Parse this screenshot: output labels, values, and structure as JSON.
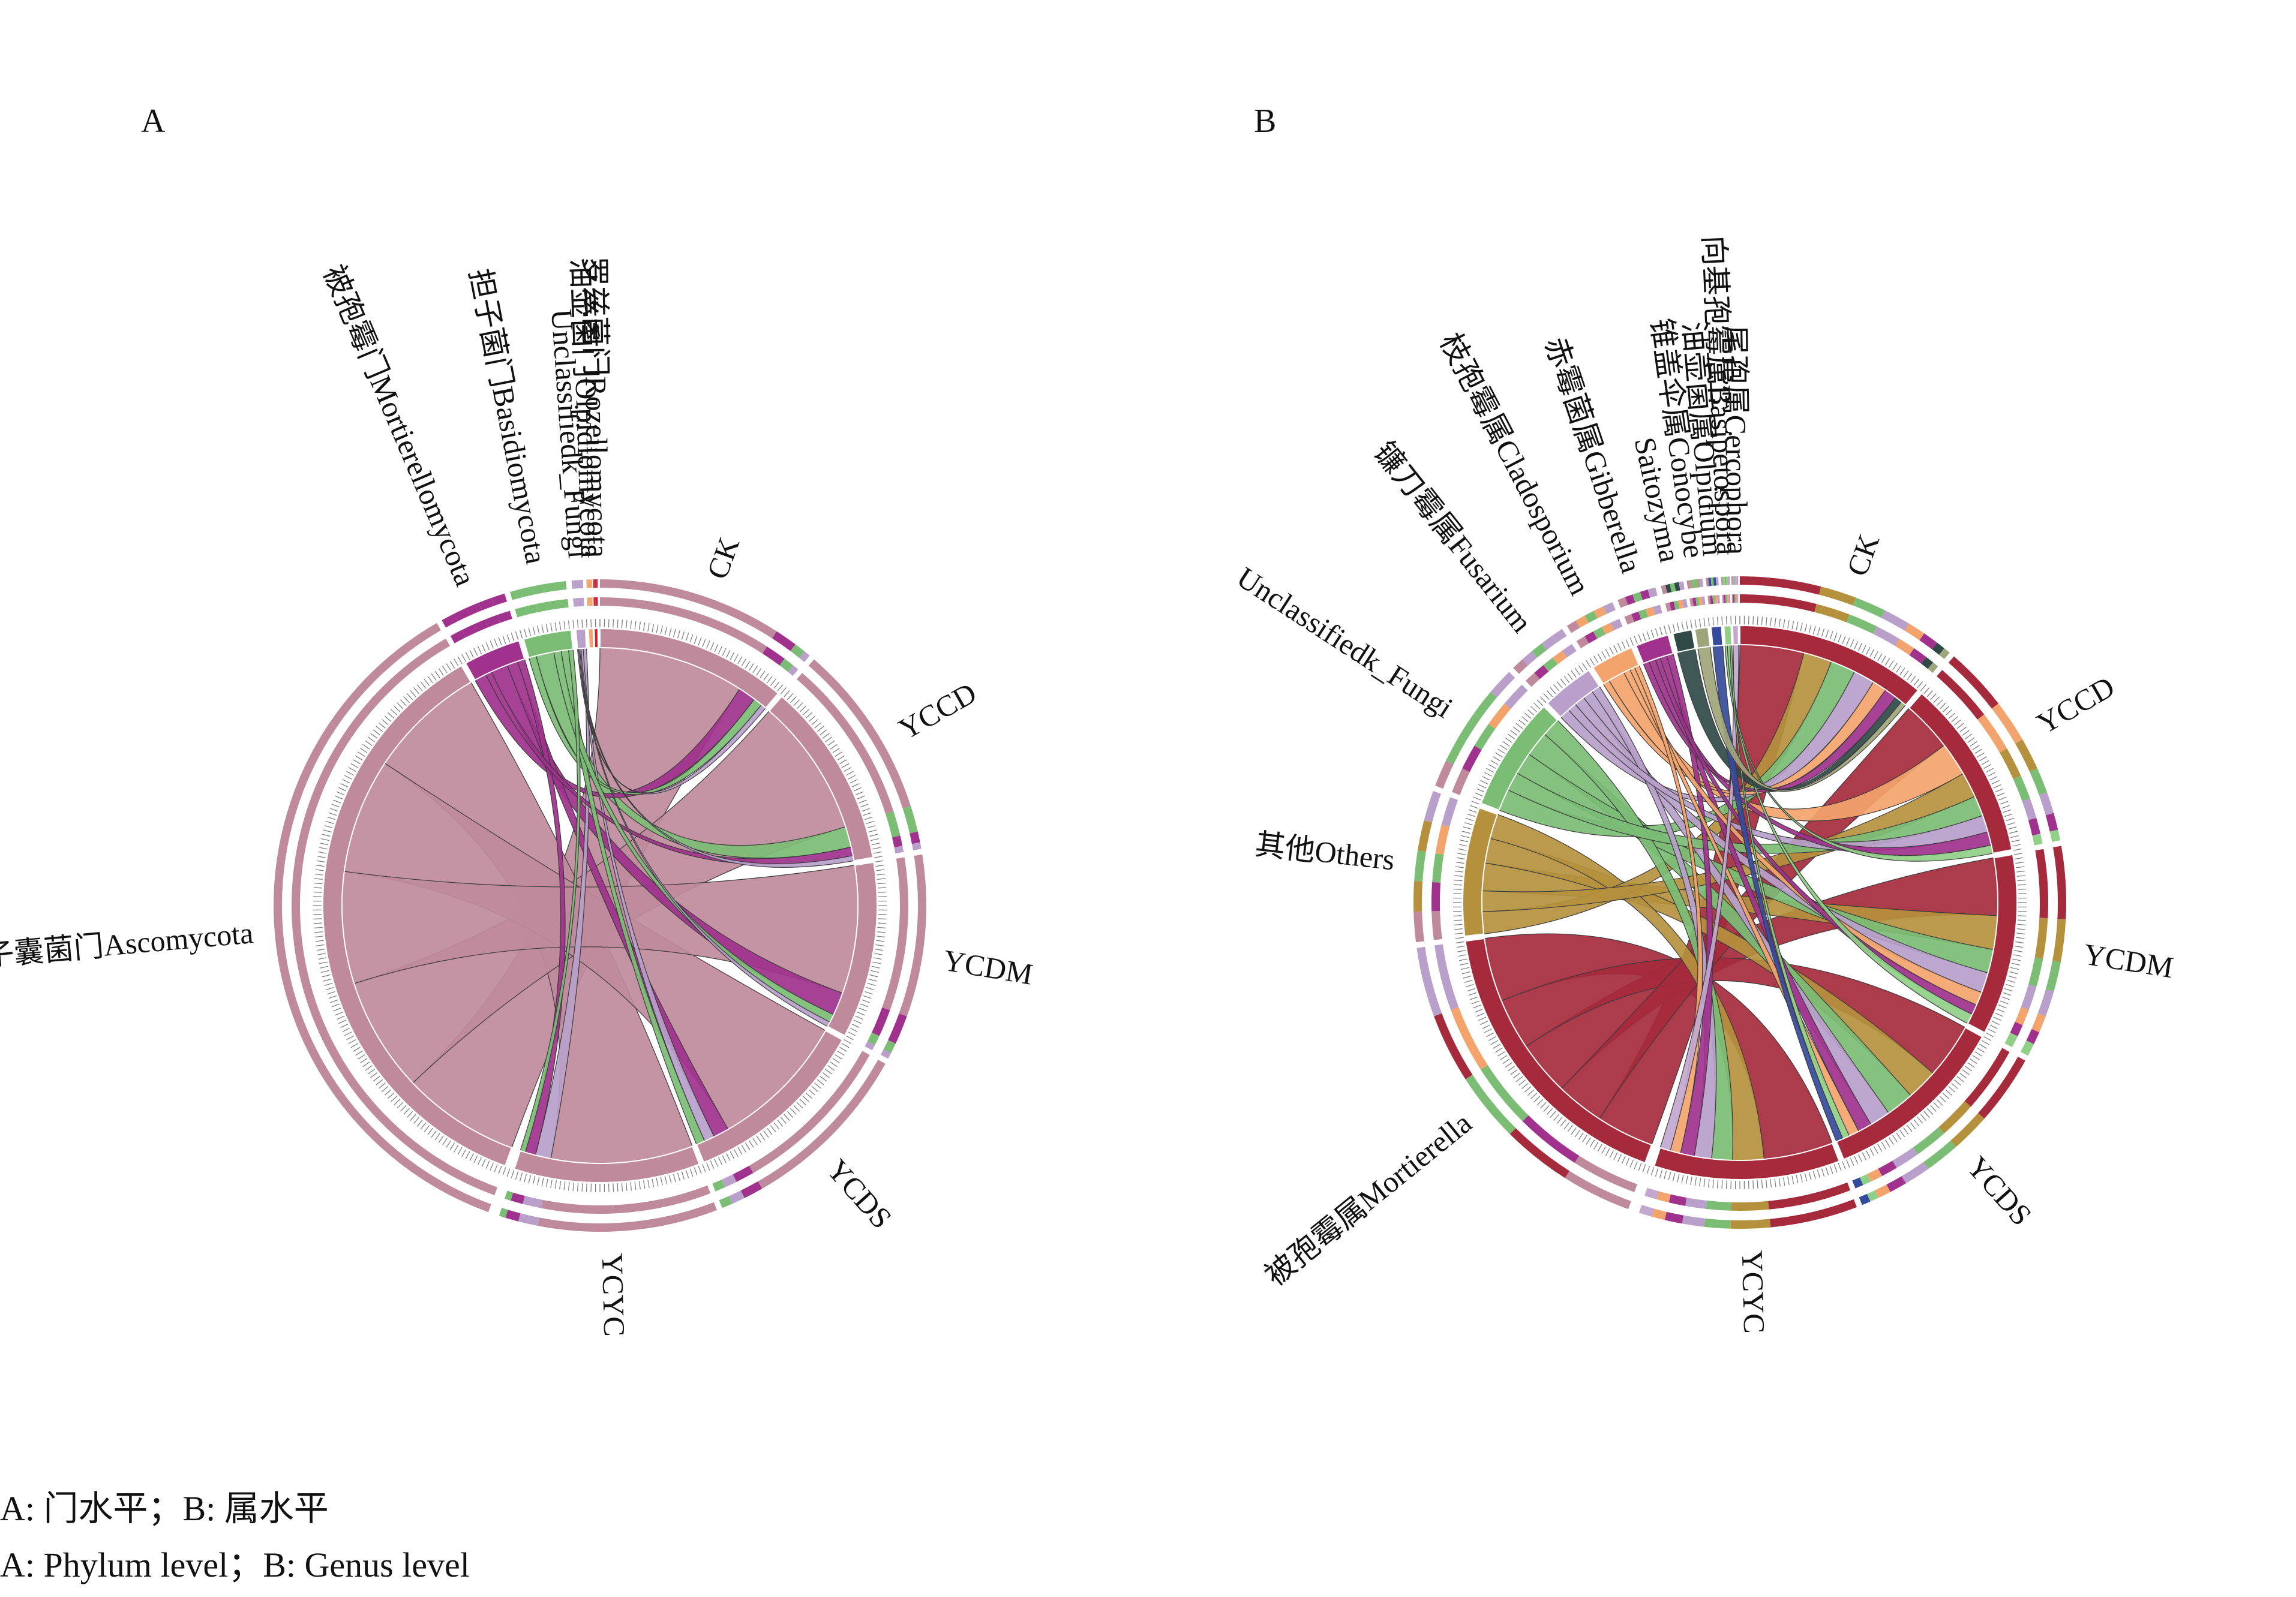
{
  "panels": [
    {
      "id": "A",
      "label": "A",
      "center": [
        1000,
        1510
      ],
      "samples": [
        {
          "name": "CK",
          "start": 0,
          "end": 40,
          "segments": [
            [
              "Ascomycota",
              0.82
            ],
            [
              "Mortierellomycota",
              0.1
            ],
            [
              "Basidiomycota",
              0.05
            ],
            [
              "Unclassifiedk_Fungi",
              0.03
            ]
          ]
        },
        {
          "name": "YCCD",
          "start": 41,
          "end": 80,
          "segments": [
            [
              "Ascomycota",
              0.8
            ],
            [
              "Basidiomycota",
              0.12
            ],
            [
              "Mortierellomycota",
              0.05
            ],
            [
              "Unclassifiedk_Fungi",
              0.03
            ]
          ]
        },
        {
          "name": "YCDM",
          "start": 81,
          "end": 118,
          "segments": [
            [
              "Ascomycota",
              0.78
            ],
            [
              "Mortierellomycota",
              0.14
            ],
            [
              "Basidiomycota",
              0.05
            ],
            [
              "Unclassifiedk_Fungi",
              0.03
            ]
          ]
        },
        {
          "name": "YCDS",
          "start": 119,
          "end": 158,
          "segments": [
            [
              "Ascomycota",
              0.8
            ],
            [
              "Mortierellomycota",
              0.09
            ],
            [
              "Unclassifiedk_Fungi",
              0.06
            ],
            [
              "Basidiomycota",
              0.05
            ]
          ]
        },
        {
          "name": "YCYC",
          "start": 159,
          "end": 198,
          "segments": [
            [
              "Ascomycota",
              0.82
            ],
            [
              "Unclassifiedk_Fungi",
              0.09
            ],
            [
              "Mortierellomycota",
              0.06
            ],
            [
              "Basidiomycota",
              0.03
            ]
          ]
        }
      ],
      "taxa": [
        {
          "name": "Ascomycota",
          "label": "子囊菌门Ascomycota",
          "italic": false,
          "color": "#bf8a9c",
          "start": 200,
          "end": 330
        },
        {
          "name": "Mortierellomycota",
          "label": "被孢霉门Mortierellomycota",
          "italic": false,
          "color": "#a0318c",
          "start": 331,
          "end": 343
        },
        {
          "name": "Basidiomycota",
          "label": "担子菌门Basidiomycota",
          "italic": false,
          "color": "#7bbd75",
          "start": 344,
          "end": 354
        },
        {
          "name": "Unclassifiedk_Fungi",
          "label": "Unclassifiedk_Fungi",
          "italic": false,
          "color": "#b9a0ca",
          "start": 355,
          "end": 357
        },
        {
          "name": "Olpidiomycota",
          "label": "油壶菌门Olpidiomycota",
          "italic": false,
          "color": "#f3a46d",
          "start": 357.6,
          "end": 358.6
        },
        {
          "name": "Rozellomycota",
          "label": "罗兹菌门Rozellomycota",
          "italic": false,
          "color": "#c8202f",
          "start": 358.8,
          "end": 359.6
        }
      ]
    },
    {
      "id": "B",
      "label": "B",
      "center": [
        2900,
        1505
      ],
      "samples": [
        {
          "name": "CK",
          "start": 0,
          "end": 40,
          "segments": [
            [
              "Mortierella",
              0.36
            ],
            [
              "Others",
              0.16
            ],
            [
              "Unclassifiedk_Fungi",
              0.14
            ],
            [
              "Fusarium",
              0.12
            ],
            [
              "Cladosporium",
              0.08
            ],
            [
              "Gibberella",
              0.07
            ],
            [
              "Saitozyma",
              0.04
            ],
            [
              "Conocybe",
              0.03
            ]
          ]
        },
        {
          "name": "YCCD",
          "start": 41,
          "end": 79,
          "segments": [
            [
              "Mortierella",
              0.3
            ],
            [
              "Cladosporium",
              0.2
            ],
            [
              "Others",
              0.15
            ],
            [
              "Unclassifiedk_Fungi",
              0.12
            ],
            [
              "Fusarium",
              0.1
            ],
            [
              "Gibberella",
              0.08
            ],
            [
              "Basipetospora",
              0.05
            ]
          ]
        },
        {
          "name": "YCDM",
          "start": 80,
          "end": 118,
          "segments": [
            [
              "Mortierella",
              0.34
            ],
            [
              "Others",
              0.2
            ],
            [
              "Unclassifiedk_Fungi",
              0.14
            ],
            [
              "Fusarium",
              0.12
            ],
            [
              "Cladosporium",
              0.08
            ],
            [
              "Gibberella",
              0.06
            ],
            [
              "Basipetospora",
              0.06
            ]
          ]
        },
        {
          "name": "YCDS",
          "start": 119,
          "end": 158,
          "segments": [
            [
              "Mortierella",
              0.32
            ],
            [
              "Others",
              0.18
            ],
            [
              "Unclassifiedk_Fungi",
              0.16
            ],
            [
              "Fusarium",
              0.12
            ],
            [
              "Gibberella",
              0.08
            ],
            [
              "Cladosporium",
              0.06
            ],
            [
              "Basipetospora",
              0.04
            ],
            [
              "Olpidium",
              0.04
            ]
          ]
        },
        {
          "name": "YCYC",
          "start": 159,
          "end": 198,
          "segments": [
            [
              "Mortierella",
              0.4
            ],
            [
              "Others",
              0.18
            ],
            [
              "Unclassifiedk_Fungi",
              0.12
            ],
            [
              "Fusarium",
              0.1
            ],
            [
              "Gibberella",
              0.08
            ],
            [
              "Cladosporium",
              0.06
            ],
            [
              "Cercophora",
              0.06
            ]
          ]
        }
      ],
      "taxa": [
        {
          "name": "Mortierella",
          "label": "被孢霉属Mortierella",
          "italic": true,
          "color": "#a52a3c",
          "start": 200,
          "end": 262
        },
        {
          "name": "Others",
          "label": "其他Others",
          "italic": false,
          "color": "#b5913e",
          "start": 263,
          "end": 290
        },
        {
          "name": "Unclassifiedk_Fungi",
          "label": "Unclassifiedk_Fungi",
          "italic": true,
          "color": "#7bbd75",
          "start": 291,
          "end": 315
        },
        {
          "name": "Fusarium",
          "label": "镰刀霉属Fusarium",
          "italic": true,
          "color": "#b9a0ca",
          "start": 316,
          "end": 327
        },
        {
          "name": "Cladosporium",
          "label": "枝孢霉属Cladosporium",
          "italic": true,
          "color": "#f3a46d",
          "start": 328,
          "end": 337
        },
        {
          "name": "Gibberella",
          "label": "赤霉菌属Gibberella",
          "italic": true,
          "color": "#a0318c",
          "start": 338,
          "end": 345
        },
        {
          "name": "Saitozyma",
          "label": "Saitozyma",
          "italic": true,
          "color": "#2f4a46",
          "start": 346,
          "end": 350
        },
        {
          "name": "Conocybe",
          "label": "锥盖伞属Conocybe",
          "italic": true,
          "color": "#9fa57b",
          "start": 350.6,
          "end": 353.4
        },
        {
          "name": "Olpidium",
          "label": "油壶菌属Olpidium",
          "italic": true,
          "color": "#344a9c",
          "start": 354,
          "end": 356.2
        },
        {
          "name": "Basipetospora",
          "label": "向基孢霉属Basipetospora",
          "italic": true,
          "color": "#8fcf86",
          "start": 356.7,
          "end": 358.2
        },
        {
          "name": "Cercophora",
          "label": "尾孢属Cercophora",
          "italic": true,
          "color": "#c3a7cf",
          "start": 358.5,
          "end": 359.7
        }
      ]
    }
  ],
  "caption": {
    "line1": "A: 门水平；B: 属水平",
    "line2": "A: Phylum level；B: Genus level"
  }
}
